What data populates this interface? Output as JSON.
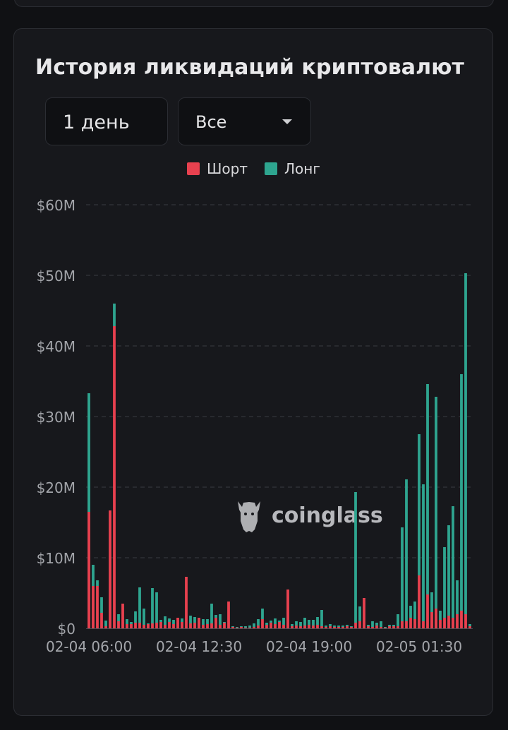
{
  "title": "История ликвидаций криптовалют",
  "controls": {
    "period_label": "1 день",
    "filter_label": "Все"
  },
  "watermark": "coinglass",
  "colors": {
    "background": "#101114",
    "card": "#17181c",
    "short": "#e8414f",
    "long": "#2ea58f",
    "grid": "#3a3c42",
    "axis_text": "#a3a5aa"
  },
  "icons": {
    "period_stepper": "up-down-chevron-icon",
    "filter_dropdown": "caret-down-icon",
    "watermark_logo": "coinglass-bull-icon"
  },
  "chart_data": {
    "type": "bar",
    "stacked": true,
    "title": "",
    "xlabel": "",
    "ylabel": "",
    "ylim": [
      0,
      60000000
    ],
    "yticks": [
      0,
      10000000,
      20000000,
      30000000,
      40000000,
      50000000,
      60000000
    ],
    "ytick_labels": [
      "$0",
      "$10M",
      "$20M",
      "$30M",
      "$40M",
      "$50M",
      "$60M"
    ],
    "xtick_labels": [
      {
        "index": 0,
        "label": "02-04 06:00"
      },
      {
        "index": 26,
        "label": "02-04 12:30"
      },
      {
        "index": 52,
        "label": "02-04 19:00"
      },
      {
        "index": 78,
        "label": "02-05 01:30"
      }
    ],
    "grid": true,
    "legend_position": "top-center",
    "categories_count": 91,
    "series": [
      {
        "name": "Шорт",
        "color": "#e8414f",
        "values": [
          16.5,
          6.0,
          6.0,
          2.2,
          0.3,
          16.7,
          42.8,
          1.0,
          3.5,
          0.6,
          0.6,
          0.8,
          0.8,
          0.5,
          0.6,
          0.7,
          0.8,
          0.9,
          0.5,
          0.9,
          0.6,
          1.5,
          0.9,
          7.3,
          0.7,
          0.8,
          1.5,
          0.5,
          0.6,
          0.7,
          1.5,
          0.5,
          0.8,
          3.8,
          0.2,
          0.1,
          0.2,
          0.1,
          0.1,
          0.2,
          0.4,
          1.3,
          0.5,
          0.8,
          0.6,
          0.9,
          0.5,
          5.5,
          0.3,
          0.4,
          0.3,
          0.4,
          0.5,
          0.4,
          0.5,
          0.3,
          0.2,
          0.3,
          0.2,
          0.2,
          0.2,
          0.3,
          0.2,
          0.8,
          1.0,
          4.3,
          0.3,
          0.2,
          0.4,
          0.2,
          0.1,
          0.3,
          0.3,
          0.3,
          1.0,
          1.0,
          1.5,
          1.3,
          7.5,
          1.0,
          4.8,
          2.3,
          2.8,
          1.2,
          1.5,
          1.8,
          1.5,
          2.0,
          2.5,
          2.0,
          0.3
        ],
        "unit": "M USD"
      },
      {
        "name": "Лонг",
        "color": "#2ea58f",
        "values": [
          16.8,
          3.0,
          0.8,
          2.2,
          0.8,
          0.0,
          3.2,
          1.0,
          0.0,
          0.7,
          0.3,
          1.6,
          5.0,
          2.3,
          0.1,
          5.0,
          4.3,
          0.3,
          1.2,
          0.5,
          0.6,
          0.0,
          0.5,
          0.0,
          1.1,
          0.8,
          0.0,
          0.8,
          0.7,
          2.8,
          0.4,
          1.5,
          0.1,
          0.0,
          0.1,
          0.1,
          0.1,
          0.2,
          0.3,
          0.5,
          0.9,
          1.5,
          0.3,
          0.3,
          0.8,
          0.2,
          1.0,
          0.0,
          0.3,
          0.6,
          0.6,
          1.1,
          0.7,
          0.8,
          1.1,
          2.3,
          0.2,
          0.3,
          0.2,
          0.2,
          0.2,
          0.2,
          0.1,
          18.5,
          2.1,
          0.0,
          0.2,
          0.8,
          0.4,
          0.8,
          0.1,
          0.2,
          0.2,
          1.7,
          13.3,
          20.1,
          1.7,
          2.5,
          20.0,
          19.4,
          29.8,
          2.8,
          30.0,
          1.3,
          10.0,
          12.8,
          15.8,
          4.8,
          33.5,
          48.3,
          0.3
        ],
        "unit": "M USD"
      }
    ]
  },
  "legend": [
    {
      "name": "Шорт",
      "color": "#e8414f"
    },
    {
      "name": "Лонг",
      "color": "#2ea58f"
    }
  ]
}
